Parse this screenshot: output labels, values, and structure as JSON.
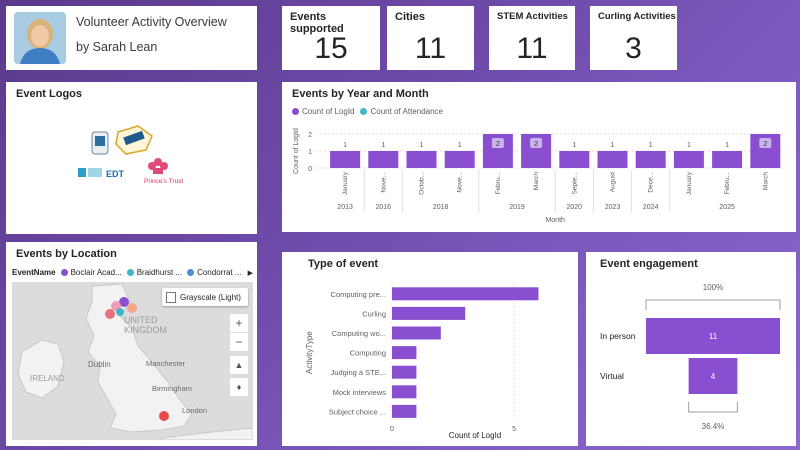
{
  "header": {
    "title": "Volunteer Activity Overview",
    "subtitle": "by Sarah Lean"
  },
  "kpis": [
    {
      "label": "Events supported",
      "value": "15"
    },
    {
      "label": "Cities",
      "value": "11"
    },
    {
      "label": "STEM Activities",
      "value": "11"
    },
    {
      "label": "Curling Activities",
      "value": "3"
    }
  ],
  "logos": {
    "title": "Event Logos",
    "items": [
      "EDT",
      "Prince's Trust"
    ]
  },
  "year_month": {
    "title": "Events by Year and Month",
    "legend": [
      "Count of LogId",
      "Count of Attendance"
    ],
    "legend_colors": [
      "#8a4fd1",
      "#42b5c6"
    ],
    "ylabel": "Count of LogId",
    "xlabel": "Month",
    "yticks": [
      "2",
      "1",
      "0"
    ],
    "bars": [
      {
        "month": "January",
        "value": 1
      },
      {
        "month": "Nove...",
        "value": 1
      },
      {
        "month": "Octob...",
        "value": 1
      },
      {
        "month": "Nove...",
        "value": 1
      },
      {
        "month": "Febru...",
        "value": 2
      },
      {
        "month": "March",
        "value": 2
      },
      {
        "month": "Septe...",
        "value": 1
      },
      {
        "month": "August",
        "value": 1
      },
      {
        "month": "Dece...",
        "value": 1
      },
      {
        "month": "January",
        "value": 1
      },
      {
        "month": "Febru...",
        "value": 1
      },
      {
        "month": "March",
        "value": 2
      }
    ],
    "years": [
      {
        "label": "2013",
        "span": 1
      },
      {
        "label": "2016",
        "span": 1
      },
      {
        "label": "2018",
        "span": 2
      },
      {
        "label": "2019",
        "span": 2
      },
      {
        "label": "2020",
        "span": 1
      },
      {
        "label": "2023",
        "span": 1
      },
      {
        "label": "2024",
        "span": 1
      },
      {
        "label": "2025",
        "span": 3
      }
    ]
  },
  "location": {
    "title": "Events by Location",
    "legend_label": "EventName",
    "legend_items": [
      {
        "name": "Boclair Acad...",
        "color": "#8a4fd1"
      },
      {
        "name": "Braidhurst ...",
        "color": "#42b5c6"
      },
      {
        "name": "Condorrat ...",
        "color": "#4a8fd9"
      }
    ],
    "map_style": "Grayscale (Light)",
    "places": [
      "UNITED",
      "KINGDOM",
      "IRELAND",
      "Dublin",
      "Manchester",
      "Birmingham",
      "London"
    ],
    "zoom_in": "+",
    "zoom_out": "−"
  },
  "type_chart": {
    "title": "Type of event",
    "ylabel": "ActivityType",
    "xlabel": "Count of LogId",
    "categories": [
      "Computing pre...",
      "Curling",
      "Computing wo...",
      "Computing",
      "Judging a STE...",
      "Mock interviews",
      "Subject choice ..."
    ],
    "values": [
      6,
      3,
      2,
      1,
      1,
      1,
      1
    ],
    "xticks": [
      "0",
      "5"
    ],
    "xmax": 6.8
  },
  "engagement": {
    "title": "Event engagement",
    "top_pct": "100%",
    "bottom_pct": "36.4%",
    "rows": [
      {
        "label": "In person",
        "value": 11
      },
      {
        "label": "Virtual",
        "value": 4
      }
    ]
  },
  "colors": {
    "bar": "#8a4fd1",
    "bar_label_bg": "#c9b3e9"
  }
}
